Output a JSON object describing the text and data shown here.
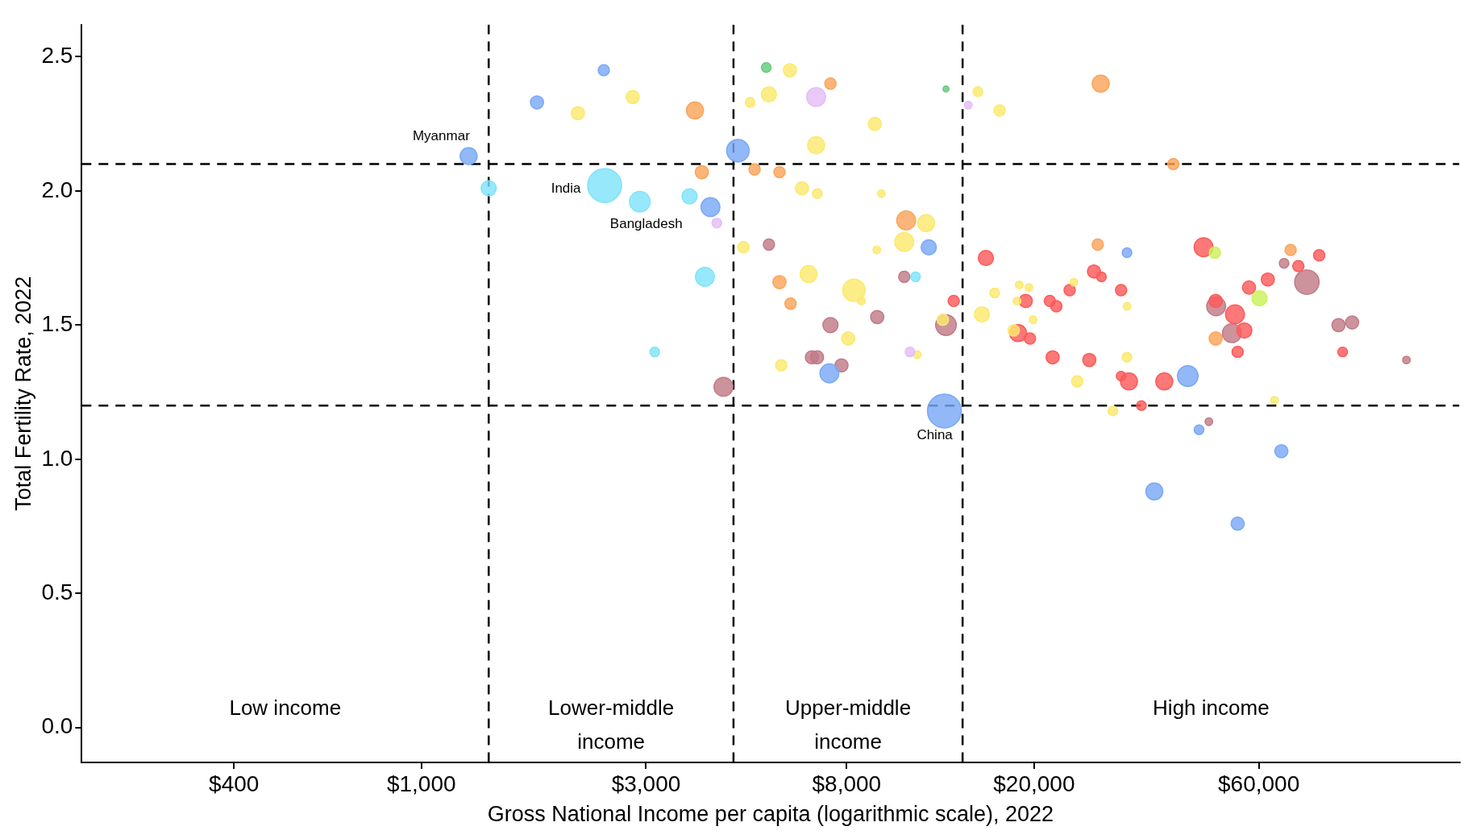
{
  "chart_data": {
    "type": "bubble",
    "xlabel": "Gross National Income per capita (logarithmic scale), 2022",
    "ylabel": "Total Fertility Rate, 2022",
    "log": "x",
    "marker": "circle",
    "grid": false,
    "xlim": [
      190,
      160000
    ],
    "xticks": [
      {
        "value": 400,
        "label": "$400"
      },
      {
        "value": 1000,
        "label": "$1,000"
      },
      {
        "value": 3000,
        "label": "$3,000"
      },
      {
        "value": 8000,
        "label": "$8,000"
      },
      {
        "value": 20000,
        "label": "$20,000"
      },
      {
        "value": 60000,
        "label": "$60,000"
      }
    ],
    "ylim": [
      -0.13,
      2.62
    ],
    "yticks": [
      {
        "value": 0,
        "label": "0.0"
      },
      0.5,
      {
        "value": 1,
        "label": "1.0"
      },
      1.5,
      {
        "value": 2,
        "label": "2.0"
      },
      2.5
    ],
    "ref_lines": [
      {
        "axis": "x",
        "value": 1390,
        "color": "#000000",
        "line_style": "dashed"
      },
      {
        "axis": "x",
        "value": 4600,
        "color": "#000000",
        "line_style": "dashed"
      },
      {
        "axis": "x",
        "value": 14100,
        "color": "#000000",
        "line_style": "dashed"
      },
      {
        "axis": "y",
        "value": 2.1,
        "color": "#000000",
        "line_style": "dashed"
      },
      {
        "axis": "y",
        "value": 1.2,
        "color": "#000000",
        "line_style": "dashed"
      }
    ],
    "annotations": [
      "Low income",
      "Lower-middle income",
      "Upper-middle income",
      "High income",
      {
        "text": "Myanmar",
        "x": 1260,
        "y": 2.13
      },
      {
        "text": "India",
        "x": 2450,
        "y": 2.02
      },
      {
        "text": "Bangladesh",
        "x": 2910,
        "y": 1.96
      },
      {
        "text": "China",
        "x": 12900,
        "y": 1.18
      }
    ],
    "series": [
      {
        "color": "#79a8f5",
        "x": [
          2440,
          1760,
          1260,
          4700,
          4110,
          11950,
          7350,
          12900,
          31500,
          42400,
          44800,
          36000,
          54100,
          67000
        ],
        "values": [
          2.45,
          2.33,
          2.13,
          2.15,
          1.94,
          1.79,
          1.32,
          1.18,
          1.77,
          1.31,
          1.11,
          0.88,
          0.76,
          1.03
        ],
        "sizes": [
          0.11,
          0.15,
          0.25,
          0.44,
          0.31,
          0.2,
          0.31,
          1,
          0.08,
          0.37,
          0.08,
          0.25,
          0.15,
          0.15
        ]
      },
      {
        "color": "#7fe3fa",
        "x": [
          2450,
          1390,
          2910,
          3710,
          4000,
          3130,
          11200
        ],
        "values": [
          2.02,
          2.01,
          1.96,
          1.98,
          1.68,
          1.4,
          1.68
        ],
        "sizes": [
          1,
          0.2,
          0.37,
          0.2,
          0.31,
          0.08,
          0.08
        ]
      },
      {
        "color": "#e3bdf7",
        "x": [
          6890,
          4240,
          14500,
          10900
        ],
        "values": [
          2.35,
          1.88,
          2.32,
          1.4
        ],
        "sizes": [
          0.31,
          0.08,
          0.05,
          0.08
        ]
      },
      {
        "color": "#65c97a",
        "x": [
          5400,
          13000
        ],
        "values": [
          2.46,
          2.38
        ],
        "sizes": [
          0.08,
          0.03
        ]
      },
      {
        "color": "#c9f25a",
        "x": [
          48400,
          60200
        ],
        "values": [
          1.77,
          1.6
        ],
        "sizes": [
          0.11,
          0.2
        ]
      },
      {
        "color": "#fba45a",
        "x": [
          7390,
          3810,
          27700,
          3940,
          5100,
          5760,
          39500,
          10700,
          5760,
          6080,
          27300,
          70100,
          48600
        ],
        "values": [
          2.4,
          2.3,
          2.4,
          2.07,
          2.08,
          2.07,
          2.1,
          1.89,
          1.66,
          1.58,
          1.8,
          1.78,
          1.45
        ],
        "sizes": [
          0.11,
          0.25,
          0.25,
          0.15,
          0.11,
          0.11,
          0.11,
          0.31,
          0.15,
          0.11,
          0.11,
          0.11,
          0.15
        ]
      },
      {
        "color": "#fbe96e",
        "x": [
          6060,
          4990,
          5470,
          2150,
          2810,
          9180,
          6890,
          15200,
          16900,
          6430,
          6930,
          9480,
          11800,
          10600,
          4830,
          9270,
          6640,
          8290,
          8600,
          8060,
          5810,
          12800,
          11300,
          15500,
          16500,
          18600,
          19500,
          18400,
          19900,
          18100,
          24300,
          24700,
          31500,
          31500,
          29400,
          64800
        ],
        "values": [
          2.45,
          2.33,
          2.36,
          2.29,
          2.35,
          2.25,
          2.17,
          2.37,
          2.3,
          2.01,
          1.99,
          1.99,
          1.88,
          1.81,
          1.79,
          1.78,
          1.69,
          1.63,
          1.59,
          1.45,
          1.35,
          1.52,
          1.39,
          1.54,
          1.62,
          1.65,
          1.64,
          1.59,
          1.52,
          1.48,
          1.66,
          1.29,
          1.57,
          1.38,
          1.18,
          1.22
        ],
        "sizes": [
          0.15,
          0.08,
          0.2,
          0.15,
          0.15,
          0.15,
          0.25,
          0.08,
          0.11,
          0.15,
          0.08,
          0.05,
          0.25,
          0.31,
          0.11,
          0.05,
          0.25,
          0.44,
          0.05,
          0.15,
          0.11,
          0.11,
          0.05,
          0.2,
          0.08,
          0.05,
          0.05,
          0.05,
          0.05,
          0.11,
          0.05,
          0.11,
          0.05,
          0.08,
          0.08,
          0.05
        ]
      },
      {
        "color": "#fd5a5a",
        "x": [
          15800,
          13500,
          19200,
          18500,
          19600,
          21600,
          22300,
          23800,
          21900,
          26200,
          26800,
          27800,
          30600,
          30600,
          31800,
          33800,
          37800,
          45800,
          48600,
          53400,
          55900,
          54100,
          57200,
          62700,
          72800,
          80600,
          90400
        ],
        "values": [
          1.75,
          1.59,
          1.59,
          1.47,
          1.45,
          1.59,
          1.57,
          1.63,
          1.38,
          1.37,
          1.7,
          1.68,
          1.63,
          1.31,
          1.29,
          1.2,
          1.29,
          1.79,
          1.59,
          1.54,
          1.48,
          1.4,
          1.64,
          1.67,
          1.72,
          1.76,
          1.4
        ],
        "sizes": [
          0.2,
          0.11,
          0.15,
          0.25,
          0.11,
          0.11,
          0.11,
          0.11,
          0.15,
          0.15,
          0.15,
          0.08,
          0.11,
          0.08,
          0.25,
          0.08,
          0.25,
          0.31,
          0.15,
          0.31,
          0.2,
          0.11,
          0.15,
          0.15,
          0.11,
          0.11,
          0.08
        ]
      },
      {
        "color": "#c07b87",
        "x": [
          13000,
          5470,
          4380,
          10600,
          7390,
          9290,
          6750,
          6920,
          7800,
          48700,
          52600,
          67900,
          75900,
          88600,
          94700,
          123500,
          47000
        ],
        "values": [
          1.5,
          1.8,
          1.27,
          1.68,
          1.5,
          1.53,
          1.38,
          1.38,
          1.35,
          1.57,
          1.47,
          1.73,
          1.66,
          1.5,
          1.51,
          1.37,
          1.14
        ],
        "sizes": [
          0.37,
          0.11,
          0.31,
          0.11,
          0.2,
          0.15,
          0.15,
          0.15,
          0.15,
          0.31,
          0.31,
          0.08,
          0.52,
          0.15,
          0.15,
          0.05,
          0.05
        ]
      }
    ]
  }
}
